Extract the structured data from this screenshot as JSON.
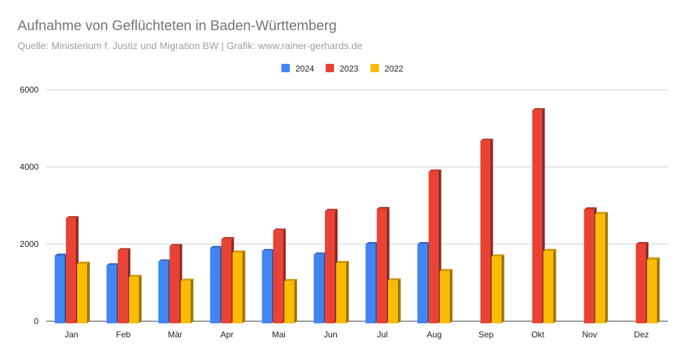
{
  "header": {
    "title": "Aufnahme von Geflüchteten in Baden-Württemberg",
    "subtitle": "Quelle: Ministerium f. Justiz und Migration BW  |   Grafik: www.rainer-gerhards.de"
  },
  "chart_data": {
    "type": "bar",
    "title": "Aufnahme von Geflüchteten in Baden-Württemberg",
    "subtitle": "Quelle: Ministerium f. Justiz und Migration BW  |   Grafik: www.rainer-gerhards.de",
    "xlabel": "",
    "ylabel": "",
    "categories": [
      "Jan",
      "Feb",
      "Mär",
      "Apr",
      "Mai",
      "Jun",
      "Jul",
      "Aug",
      "Sep",
      "Okt",
      "Nov",
      "Dez"
    ],
    "series": [
      {
        "name": "2024",
        "color": "#4285f4",
        "values": [
          1700,
          1450,
          1550,
          1900,
          1820,
          1730,
          2000,
          2000,
          null,
          null,
          null,
          null
        ]
      },
      {
        "name": "2023",
        "color": "#ea4335",
        "values": [
          2670,
          1840,
          1950,
          2130,
          2350,
          2860,
          2910,
          3880,
          4680,
          5470,
          2900,
          2000
        ]
      },
      {
        "name": "2022",
        "color": "#fbbc04",
        "values": [
          1490,
          1150,
          1050,
          1780,
          1040,
          1510,
          1060,
          1300,
          1680,
          1820,
          2780,
          1600
        ]
      }
    ],
    "yticks": [
      0,
      2000,
      4000,
      6000
    ],
    "ylim": [
      0,
      6000
    ],
    "grid": true,
    "legend": "top-center"
  }
}
